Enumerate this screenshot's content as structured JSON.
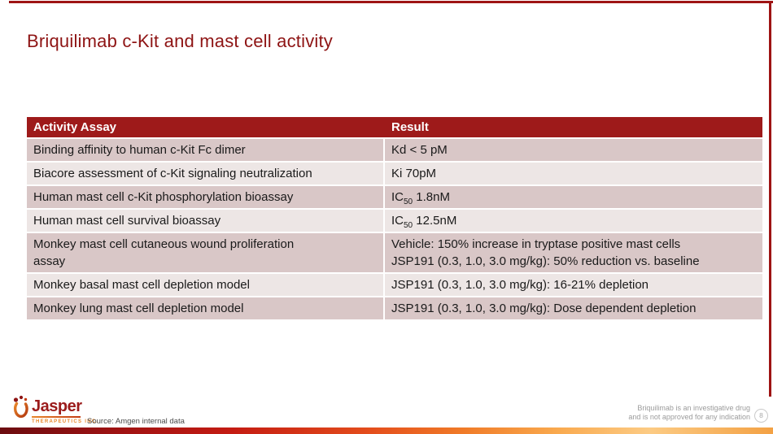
{
  "slide": {
    "title": "Briquilimab c-Kit and mast cell activity"
  },
  "colors": {
    "accent_dark_red": "#9E1A1A",
    "title_red": "#8E1414",
    "row_dark": "#D9C7C7",
    "row_light": "#EDE6E5",
    "logo_red": "#9B1B1B",
    "logo_orange": "#E8872A",
    "footer_gray": "#9B9B9B"
  },
  "table": {
    "header": [
      "Activity Assay",
      "Result"
    ],
    "rows": [
      {
        "assay_lines": [
          "Binding affinity to human c-Kit Fc dimer"
        ],
        "result_lines": [
          [
            {
              "text": "Kd < 5 pM"
            }
          ]
        ]
      },
      {
        "assay_lines": [
          "Biacore assessment of c-Kit signaling neutralization"
        ],
        "result_lines": [
          [
            {
              "text": "Ki 70pM"
            }
          ]
        ]
      },
      {
        "assay_lines": [
          "Human mast cell c-Kit phosphorylation bioassay"
        ],
        "result_lines": [
          [
            {
              "text": "IC"
            },
            {
              "sub": "50"
            },
            {
              "text": " 1.8nM"
            }
          ]
        ]
      },
      {
        "assay_lines": [
          "Human mast cell survival bioassay"
        ],
        "result_lines": [
          [
            {
              "text": "IC"
            },
            {
              "sub": "50"
            },
            {
              "text": " 12.5nM"
            }
          ]
        ]
      },
      {
        "assay_lines": [
          "Monkey mast cell cutaneous wound proliferation",
          "assay"
        ],
        "result_lines": [
          [
            {
              "text": "Vehicle: 150% increase in tryptase positive mast cells"
            }
          ],
          [
            {
              "text": "JSP191 (0.3, 1.0, 3.0 mg/kg): 50% reduction vs. baseline"
            }
          ]
        ]
      },
      {
        "assay_lines": [
          "Monkey basal mast cell depletion model"
        ],
        "result_lines": [
          [
            {
              "text": "JSP191 (0.3, 1.0, 3.0 mg/kg): 16-21% depletion"
            }
          ]
        ]
      },
      {
        "assay_lines": [
          "Monkey lung mast cell depletion model"
        ],
        "result_lines": [
          [
            {
              "text": "JSP191 (0.3, 1.0, 3.0 mg/kg): Dose dependent depletion"
            }
          ]
        ]
      }
    ]
  },
  "footer": {
    "logo_text": "Jasper",
    "logo_subtext": "THERAPEUTICS INC.",
    "source": "Source: Amgen internal data",
    "disclaimer_line1": "Briquilimab is an investigative drug",
    "disclaimer_line2": "and is not approved for any indication",
    "page_number": "8"
  }
}
